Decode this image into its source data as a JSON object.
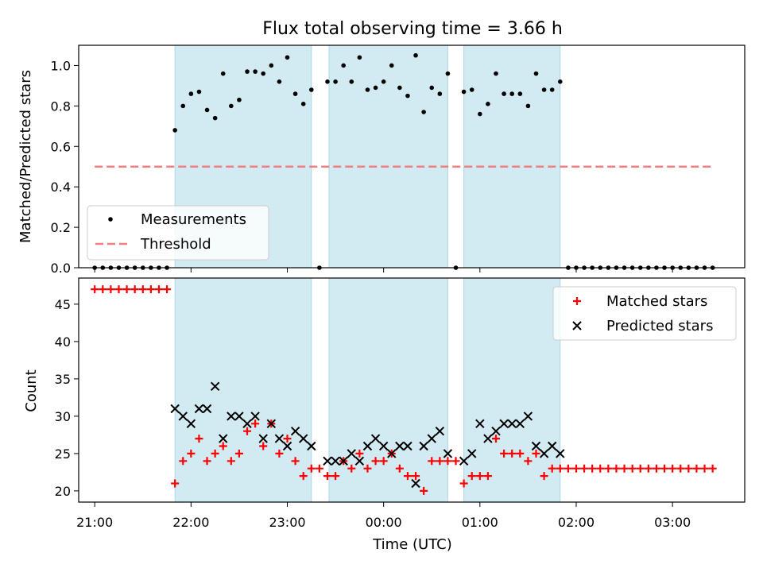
{
  "figure": {
    "title": "Flux total observing time = 3.66 h",
    "xlabel": "Time (UTC)",
    "xticks": [
      "21:00",
      "22:00",
      "23:00",
      "00:00",
      "01:00",
      "02:00",
      "03:00"
    ],
    "colors": {
      "span": "#add8e6",
      "measurement": "#000000",
      "threshold": "#f08080",
      "matched": "#ff0000",
      "predicted": "#000000"
    }
  },
  "chart_data": [
    {
      "type": "scatter",
      "ylabel": "Matched/Predicted stars",
      "xlim": [
        "20:50",
        "03:45"
      ],
      "ylim": [
        0,
        1.1
      ],
      "yticks": [
        "0.0",
        "0.2",
        "0.4",
        "0.6",
        "0.8",
        "1.0"
      ],
      "yticks_values": [
        0,
        0.2,
        0.4,
        0.6,
        0.8,
        1.0
      ],
      "observing_spans": [
        [
          "21:50",
          "23:15"
        ],
        [
          "23:26",
          "00:40"
        ],
        [
          "00:50",
          "01:50"
        ]
      ],
      "series": [
        {
          "name": "Measurements",
          "x": [
            "21:00",
            "21:05",
            "21:10",
            "21:15",
            "21:20",
            "21:25",
            "21:30",
            "21:35",
            "21:40",
            "21:45",
            "21:50",
            "21:55",
            "22:00",
            "22:05",
            "22:10",
            "22:15",
            "22:20",
            "22:25",
            "22:30",
            "22:35",
            "22:40",
            "22:45",
            "22:50",
            "22:55",
            "23:00",
            "23:05",
            "23:10",
            "23:15",
            "23:20",
            "23:25",
            "23:30",
            "23:35",
            "23:40",
            "23:45",
            "23:50",
            "23:55",
            "00:00",
            "00:05",
            "00:10",
            "00:15",
            "00:20",
            "00:25",
            "00:30",
            "00:35",
            "00:40",
            "00:45",
            "00:50",
            "00:55",
            "01:00",
            "01:05",
            "01:10",
            "01:15",
            "01:20",
            "01:25",
            "01:30",
            "01:35",
            "01:40",
            "01:45",
            "01:50",
            "01:55",
            "02:00",
            "02:05",
            "02:10",
            "02:15",
            "02:20",
            "02:25",
            "02:30",
            "02:35",
            "02:40",
            "02:45",
            "02:50",
            "02:55",
            "03:00",
            "03:05",
            "03:10",
            "03:15",
            "03:20",
            "03:25"
          ],
          "y": [
            0,
            0,
            0,
            0,
            0,
            0,
            0,
            0,
            0,
            0,
            0.68,
            0.8,
            0.86,
            0.87,
            0.78,
            0.74,
            0.96,
            0.8,
            0.83,
            0.97,
            0.97,
            0.96,
            1.0,
            0.92,
            1.04,
            0.86,
            0.81,
            0.88,
            0,
            0.92,
            0.92,
            1.0,
            0.92,
            1.04,
            0.88,
            0.89,
            0.92,
            1.0,
            0.89,
            0.85,
            1.05,
            0.77,
            0.89,
            0.86,
            0.96,
            0,
            0.87,
            0.88,
            0.76,
            0.81,
            0.96,
            0.86,
            0.86,
            0.86,
            0.8,
            0.96,
            0.88,
            0.88,
            0.92,
            0,
            0,
            0,
            0,
            0,
            0,
            0,
            0,
            0,
            0,
            0,
            0,
            0,
            0,
            0,
            0,
            0,
            0,
            0
          ]
        },
        {
          "name": "Threshold",
          "x": [
            "21:00",
            "03:25"
          ],
          "y": [
            0.5,
            0.5
          ]
        }
      ],
      "legend": "lower-left"
    },
    {
      "type": "scatter",
      "ylabel": "Count",
      "xlim": [
        "20:50",
        "03:45"
      ],
      "ylim": [
        18.5,
        48.5
      ],
      "yticks": [
        "20",
        "25",
        "30",
        "35",
        "40",
        "45"
      ],
      "yticks_values": [
        20,
        25,
        30,
        35,
        40,
        45
      ],
      "observing_spans": [
        [
          "21:50",
          "23:15"
        ],
        [
          "23:26",
          "00:40"
        ],
        [
          "00:50",
          "01:50"
        ]
      ],
      "series": [
        {
          "name": "Matched stars",
          "x": [
            "21:00",
            "21:05",
            "21:10",
            "21:15",
            "21:20",
            "21:25",
            "21:30",
            "21:35",
            "21:40",
            "21:45",
            "21:50",
            "21:55",
            "22:00",
            "22:05",
            "22:10",
            "22:15",
            "22:20",
            "22:25",
            "22:30",
            "22:35",
            "22:40",
            "22:45",
            "22:50",
            "22:55",
            "23:00",
            "23:05",
            "23:10",
            "23:15",
            "23:20",
            "23:25",
            "23:30",
            "23:35",
            "23:40",
            "23:45",
            "23:50",
            "23:55",
            "00:00",
            "00:05",
            "00:10",
            "00:15",
            "00:20",
            "00:25",
            "00:30",
            "00:35",
            "00:40",
            "00:45",
            "00:50",
            "00:55",
            "01:00",
            "01:05",
            "01:10",
            "01:15",
            "01:20",
            "01:25",
            "01:30",
            "01:35",
            "01:40",
            "01:45",
            "01:50",
            "01:55",
            "02:00",
            "02:05",
            "02:10",
            "02:15",
            "02:20",
            "02:25",
            "02:30",
            "02:35",
            "02:40",
            "02:45",
            "02:50",
            "02:55",
            "03:00",
            "03:05",
            "03:10",
            "03:15",
            "03:20",
            "03:25"
          ],
          "y": [
            47,
            47,
            47,
            47,
            47,
            47,
            47,
            47,
            47,
            47,
            21,
            24,
            25,
            27,
            24,
            25,
            26,
            24,
            25,
            28,
            29,
            26,
            29,
            25,
            27,
            24,
            22,
            23,
            23,
            22,
            22,
            24,
            23,
            25,
            23,
            24,
            24,
            25,
            23,
            22,
            22,
            20,
            24,
            24,
            24,
            24,
            21,
            22,
            22,
            22,
            27,
            25,
            25,
            25,
            24,
            25,
            22,
            23,
            23,
            23,
            23,
            23,
            23,
            23,
            23,
            23,
            23,
            23,
            23,
            23,
            23,
            23,
            23,
            23,
            23,
            23,
            23,
            23
          ]
        },
        {
          "name": "Predicted stars",
          "x": [
            "21:50",
            "21:55",
            "22:00",
            "22:05",
            "22:10",
            "22:15",
            "22:20",
            "22:25",
            "22:30",
            "22:35",
            "22:40",
            "22:45",
            "22:50",
            "22:55",
            "23:00",
            "23:05",
            "23:10",
            "23:15",
            "23:25",
            "23:30",
            "23:35",
            "23:40",
            "23:45",
            "23:50",
            "23:55",
            "00:00",
            "00:05",
            "00:10",
            "00:15",
            "00:20",
            "00:25",
            "00:30",
            "00:35",
            "00:40",
            "00:50",
            "00:55",
            "01:00",
            "01:05",
            "01:10",
            "01:15",
            "01:20",
            "01:25",
            "01:30",
            "01:35",
            "01:40",
            "01:45",
            "01:50"
          ],
          "y": [
            31,
            30,
            29,
            31,
            31,
            34,
            27,
            30,
            30,
            29,
            30,
            27,
            29,
            27,
            26,
            28,
            27,
            26,
            24,
            24,
            24,
            25,
            24,
            26,
            27,
            26,
            25,
            26,
            26,
            21,
            26,
            27,
            28,
            25,
            24,
            25,
            29,
            27,
            28,
            29,
            29,
            29,
            30,
            26,
            25,
            26,
            25
          ]
        }
      ],
      "legend": "upper-right"
    }
  ]
}
